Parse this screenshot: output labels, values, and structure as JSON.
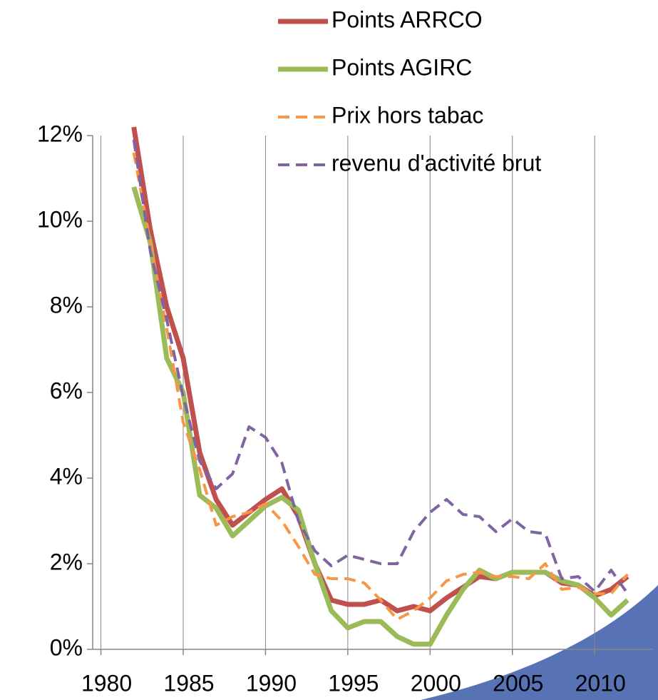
{
  "chart_data": {
    "type": "line",
    "x": [
      1982,
      1983,
      1984,
      1985,
      1986,
      1987,
      1988,
      1989,
      1990,
      1991,
      1992,
      1993,
      1994,
      1995,
      1996,
      1997,
      1998,
      1999,
      2000,
      2001,
      2002,
      2003,
      2004,
      2005,
      2006,
      2007,
      2008,
      2009,
      2010,
      2011,
      2012
    ],
    "series": [
      {
        "name": "Points ARRCO",
        "color": "#c0504d",
        "dashed": false,
        "values": [
          12.2,
          9.8,
          8.0,
          6.8,
          4.6,
          3.5,
          2.9,
          3.2,
          3.5,
          3.75,
          3.1,
          2.0,
          1.15,
          1.05,
          1.05,
          1.15,
          0.9,
          1.0,
          0.9,
          1.2,
          1.45,
          1.7,
          1.65,
          1.8,
          1.8,
          1.8,
          1.55,
          1.5,
          1.25,
          1.4,
          1.7
        ]
      },
      {
        "name": "Points AGIRC",
        "color": "#9bbb59",
        "dashed": false,
        "values": [
          10.8,
          9.5,
          6.8,
          6.0,
          3.6,
          3.3,
          2.65,
          3.0,
          3.35,
          3.55,
          3.25,
          2.0,
          0.9,
          0.5,
          0.65,
          0.65,
          0.3,
          0.12,
          0.12,
          0.8,
          1.4,
          1.85,
          1.65,
          1.8,
          1.8,
          1.8,
          1.6,
          1.5,
          1.2,
          0.8,
          1.15
        ]
      },
      {
        "name": "Prix hors tabac",
        "color": "#f79646",
        "dashed": true,
        "values": [
          11.6,
          9.5,
          7.5,
          5.3,
          4.2,
          2.9,
          3.1,
          3.2,
          3.4,
          3.0,
          2.4,
          1.75,
          1.65,
          1.65,
          1.55,
          1.15,
          0.7,
          0.9,
          1.2,
          1.6,
          1.75,
          1.8,
          1.7,
          1.7,
          1.65,
          2.0,
          1.4,
          1.45,
          1.3,
          1.3,
          1.75
        ]
      },
      {
        "name": "revenu d'activité brut",
        "color": "#8064a2",
        "dashed": true,
        "values": [
          11.9,
          9.3,
          7.7,
          5.9,
          4.4,
          3.75,
          4.1,
          5.2,
          4.95,
          4.35,
          3.0,
          2.3,
          1.95,
          2.2,
          2.1,
          2.0,
          2.0,
          2.75,
          3.2,
          3.5,
          3.15,
          3.1,
          2.75,
          3.05,
          2.75,
          2.7,
          1.65,
          1.7,
          1.35,
          1.85,
          1.3
        ]
      }
    ],
    "xlim": [
      1979.5,
      2013.5
    ],
    "xticks": [
      1980,
      1985,
      1990,
      1995,
      2000,
      2005,
      2010
    ],
    "ylim": [
      0,
      12
    ],
    "yticks": [
      {
        "value": 0,
        "label": "0%"
      },
      {
        "value": 2,
        "label": "2%"
      },
      {
        "value": 4,
        "label": "4%"
      },
      {
        "value": 6,
        "label": "6%"
      },
      {
        "value": 8,
        "label": "8%"
      },
      {
        "value": 10,
        "label": "10%"
      },
      {
        "value": 12,
        "label": "12%"
      }
    ],
    "grid": true,
    "legend": "top-right"
  }
}
